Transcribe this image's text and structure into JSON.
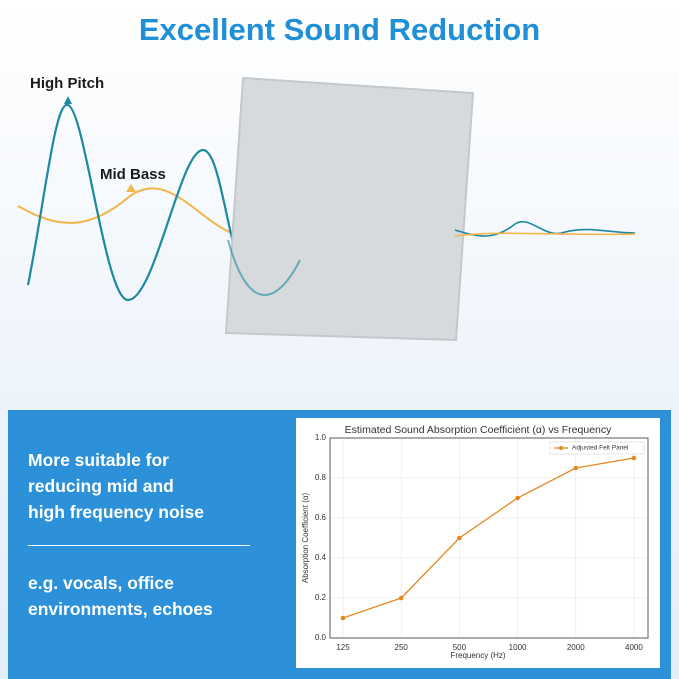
{
  "header": {
    "title": "Excellent Sound Reduction"
  },
  "labels": [
    "High Pitch",
    "Mid Bass"
  ],
  "panel": {
    "lines": [
      "More suitable for",
      "reducing mid and",
      "high frequency noise"
    ],
    "examples": [
      "e.g. vocals, office",
      "environments, echoes"
    ]
  },
  "chart_data": {
    "type": "line",
    "title": "Estimated Sound Absorption Coefficient (α) vs Frequency",
    "x_label": "Frequency (Hz)",
    "y_label": "Absorption Coefficient (α)",
    "x": [
      125,
      250,
      500,
      1000,
      2000,
      4000
    ],
    "series": [
      {
        "name": "Adjusted Felt Panel",
        "color": "#e08a1e",
        "values": [
          0.1,
          0.2,
          0.5,
          0.7,
          0.85,
          0.9
        ]
      }
    ],
    "xlim": [
      107,
      4730
    ],
    "ylim": [
      0,
      1
    ],
    "xticks": [
      125,
      250,
      500,
      1000,
      2000,
      4000
    ],
    "yticks": [
      {
        "value": 0,
        "label": "0.0"
      },
      0.2,
      0.4,
      0.6,
      0.8,
      {
        "value": 1,
        "label": "1.0"
      }
    ],
    "x_scale": "log",
    "grid": true,
    "legend": "upper-right"
  }
}
